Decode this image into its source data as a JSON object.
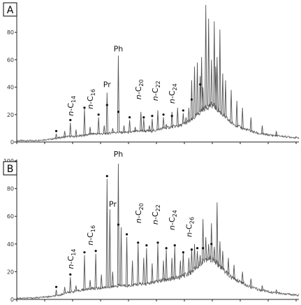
{
  "chart_data": [
    {
      "type": "line",
      "panel_label": "A",
      "ylim": [
        0,
        100
      ],
      "yticks": [
        "0",
        "20",
        "40",
        "60",
        "80",
        "100"
      ],
      "line_color": "#555555",
      "labels": [
        {
          "text": "n-C",
          "sub": "14",
          "x": 20,
          "y": 19
        },
        {
          "text": "n-C",
          "sub": "16",
          "x": 27,
          "y": 24
        },
        {
          "text": "Pr",
          "sub": "",
          "x": 32,
          "y": 40
        },
        {
          "text": "Ph",
          "sub": "",
          "x": 36,
          "y": 66
        },
        {
          "text": "n-C",
          "sub": "20",
          "x": 44,
          "y": 31
        },
        {
          "text": "n-C",
          "sub": "22",
          "x": 50,
          "y": 30
        },
        {
          "text": "n-C",
          "sub": "24",
          "x": 56,
          "y": 28
        }
      ],
      "markers": [
        {
          "x": 14,
          "y": 8
        },
        {
          "x": 19,
          "y": 16
        },
        {
          "x": 24,
          "y": 25
        },
        {
          "x": 29,
          "y": 20
        },
        {
          "x": 32,
          "y": 27
        },
        {
          "x": 36,
          "y": 22
        },
        {
          "x": 40,
          "y": 18
        },
        {
          "x": 45,
          "y": 18
        },
        {
          "x": 48,
          "y": 19
        },
        {
          "x": 52,
          "y": 20
        },
        {
          "x": 55,
          "y": 19
        },
        {
          "x": 59,
          "y": 23
        },
        {
          "x": 62,
          "y": 31
        },
        {
          "x": 65,
          "y": 42
        }
      ],
      "series": [
        {
          "x": [
            0,
            6,
            12,
            15,
            18,
            21,
            24,
            27,
            29,
            32,
            34,
            36,
            38,
            40,
            43,
            45,
            48,
            50,
            52,
            55,
            58,
            60,
            62,
            63,
            64,
            65,
            66,
            67,
            68,
            69,
            70,
            71,
            72,
            73,
            74,
            75,
            76,
            78,
            80,
            83,
            86,
            90,
            95,
            100
          ],
          "y": [
            1,
            1,
            2,
            3,
            4,
            4,
            5,
            6,
            6,
            6,
            7,
            7,
            7,
            7,
            8,
            8,
            8,
            9,
            10,
            11,
            12,
            14,
            16,
            18,
            20,
            22,
            24,
            25,
            26,
            27,
            26,
            24,
            22,
            20,
            18,
            16,
            14,
            12,
            10,
            8,
            6,
            5,
            4,
            3
          ]
        }
      ],
      "peaks": [
        {
          "x": 14,
          "y": 6
        },
        {
          "x": 17,
          "y": 8
        },
        {
          "x": 19,
          "y": 14
        },
        {
          "x": 21,
          "y": 9
        },
        {
          "x": 24,
          "y": 24
        },
        {
          "x": 26,
          "y": 11
        },
        {
          "x": 29,
          "y": 18
        },
        {
          "x": 31,
          "y": 12
        },
        {
          "x": 32,
          "y": 36
        },
        {
          "x": 34,
          "y": 10
        },
        {
          "x": 36,
          "y": 63
        },
        {
          "x": 38,
          "y": 12
        },
        {
          "x": 40,
          "y": 16
        },
        {
          "x": 42,
          "y": 11
        },
        {
          "x": 44,
          "y": 22
        },
        {
          "x": 45,
          "y": 17
        },
        {
          "x": 47,
          "y": 12
        },
        {
          "x": 48,
          "y": 17
        },
        {
          "x": 50,
          "y": 23
        },
        {
          "x": 52,
          "y": 18
        },
        {
          "x": 53,
          "y": 13
        },
        {
          "x": 55,
          "y": 22
        },
        {
          "x": 57,
          "y": 25
        },
        {
          "x": 59,
          "y": 21
        },
        {
          "x": 60,
          "y": 18
        },
        {
          "x": 61,
          "y": 25
        },
        {
          "x": 62,
          "y": 45
        },
        {
          "x": 63,
          "y": 55
        },
        {
          "x": 64,
          "y": 58
        },
        {
          "x": 65,
          "y": 48
        },
        {
          "x": 65.5,
          "y": 62
        },
        {
          "x": 66,
          "y": 40
        },
        {
          "x": 67,
          "y": 100
        },
        {
          "x": 68,
          "y": 90
        },
        {
          "x": 69,
          "y": 60
        },
        {
          "x": 70,
          "y": 88
        },
        {
          "x": 70.5,
          "y": 55
        },
        {
          "x": 71,
          "y": 62
        },
        {
          "x": 72,
          "y": 82
        },
        {
          "x": 73,
          "y": 50
        },
        {
          "x": 74,
          "y": 45
        },
        {
          "x": 76,
          "y": 38
        },
        {
          "x": 78,
          "y": 30
        },
        {
          "x": 80,
          "y": 25
        },
        {
          "x": 83,
          "y": 18
        },
        {
          "x": 87,
          "y": 12
        },
        {
          "x": 92,
          "y": 8
        }
      ]
    },
    {
      "type": "line",
      "panel_label": "B",
      "ylim": [
        0,
        100
      ],
      "yticks": [
        "0",
        "20",
        "40",
        "60",
        "80",
        "100"
      ],
      "line_color": "#555555",
      "labels": [
        {
          "text": "n-C",
          "sub": "14",
          "x": 20,
          "y": 22
        },
        {
          "text": "n-C",
          "sub": "16",
          "x": 27,
          "y": 39
        },
        {
          "text": "Pr",
          "sub": "",
          "x": 34,
          "y": 67
        },
        {
          "text": "Ph",
          "sub": "",
          "x": 36,
          "y": 103
        },
        {
          "text": "n-C",
          "sub": "20",
          "x": 44,
          "y": 55
        },
        {
          "text": "n-C",
          "sub": "22",
          "x": 50,
          "y": 54
        },
        {
          "text": "n-C",
          "sub": "24",
          "x": 56,
          "y": 50
        },
        {
          "text": "n-C",
          "sub": "26",
          "x": 62,
          "y": 45
        }
      ],
      "markers": [
        {
          "x": 14,
          "y": 9
        },
        {
          "x": 19,
          "y": 18
        },
        {
          "x": 24,
          "y": 34
        },
        {
          "x": 28,
          "y": 35
        },
        {
          "x": 32,
          "y": 89
        },
        {
          "x": 36,
          "y": 54
        },
        {
          "x": 39,
          "y": 47
        },
        {
          "x": 43,
          "y": 41
        },
        {
          "x": 46,
          "y": 39
        },
        {
          "x": 50,
          "y": 41
        },
        {
          "x": 53,
          "y": 37
        },
        {
          "x": 56,
          "y": 39
        },
        {
          "x": 59,
          "y": 34
        },
        {
          "x": 62,
          "y": 36
        },
        {
          "x": 64,
          "y": 37
        },
        {
          "x": 66,
          "y": 37
        },
        {
          "x": 69,
          "y": 40
        }
      ],
      "series": [
        {
          "x": [
            0,
            6,
            12,
            15,
            18,
            21,
            24,
            27,
            29,
            32,
            34,
            36,
            38,
            40,
            43,
            45,
            48,
            50,
            52,
            55,
            58,
            60,
            62,
            63,
            64,
            65,
            66,
            67,
            68,
            69,
            70,
            71,
            72,
            73,
            74,
            75,
            76,
            78,
            80,
            83,
            86,
            90,
            95,
            100
          ],
          "y": [
            1,
            1,
            2,
            3,
            5,
            6,
            7,
            8,
            8,
            9,
            9,
            10,
            10,
            10,
            11,
            11,
            12,
            13,
            14,
            15,
            16,
            18,
            20,
            22,
            24,
            26,
            28,
            29,
            30,
            29,
            28,
            26,
            24,
            22,
            20,
            18,
            16,
            14,
            12,
            9,
            7,
            5,
            4,
            3
          ]
        }
      ],
      "peaks": [
        {
          "x": 14,
          "y": 7
        },
        {
          "x": 17,
          "y": 9
        },
        {
          "x": 19,
          "y": 16
        },
        {
          "x": 21,
          "y": 10
        },
        {
          "x": 24,
          "y": 32
        },
        {
          "x": 26,
          "y": 14
        },
        {
          "x": 28,
          "y": 33
        },
        {
          "x": 30,
          "y": 18
        },
        {
          "x": 32,
          "y": 87
        },
        {
          "x": 33,
          "y": 65
        },
        {
          "x": 34,
          "y": 20
        },
        {
          "x": 36,
          "y": 98
        },
        {
          "x": 37,
          "y": 52
        },
        {
          "x": 39,
          "y": 45
        },
        {
          "x": 41,
          "y": 28
        },
        {
          "x": 43,
          "y": 40
        },
        {
          "x": 45,
          "y": 30
        },
        {
          "x": 46,
          "y": 37
        },
        {
          "x": 48,
          "y": 26
        },
        {
          "x": 50,
          "y": 40
        },
        {
          "x": 52,
          "y": 28
        },
        {
          "x": 53,
          "y": 36
        },
        {
          "x": 55,
          "y": 30
        },
        {
          "x": 56,
          "y": 38
        },
        {
          "x": 58,
          "y": 28
        },
        {
          "x": 59,
          "y": 34
        },
        {
          "x": 61,
          "y": 30
        },
        {
          "x": 62,
          "y": 36
        },
        {
          "x": 63,
          "y": 40
        },
        {
          "x": 64,
          "y": 35
        },
        {
          "x": 65,
          "y": 32
        },
        {
          "x": 66,
          "y": 58
        },
        {
          "x": 67,
          "y": 45
        },
        {
          "x": 68,
          "y": 40
        },
        {
          "x": 69,
          "y": 55
        },
        {
          "x": 70,
          "y": 38
        },
        {
          "x": 71,
          "y": 70
        },
        {
          "x": 72,
          "y": 42
        },
        {
          "x": 73,
          "y": 35
        },
        {
          "x": 75,
          "y": 30
        },
        {
          "x": 77,
          "y": 25
        },
        {
          "x": 80,
          "y": 20
        },
        {
          "x": 83,
          "y": 15
        },
        {
          "x": 87,
          "y": 10
        },
        {
          "x": 92,
          "y": 7
        }
      ]
    }
  ]
}
